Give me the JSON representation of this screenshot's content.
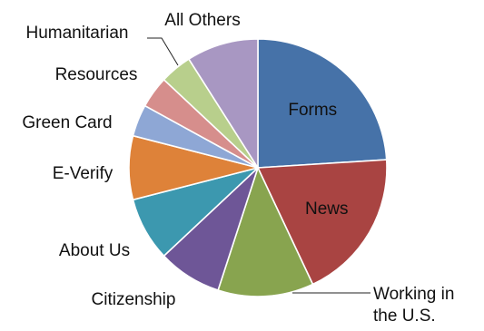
{
  "chart_data": {
    "type": "pie",
    "title": "",
    "slices": [
      {
        "label": "Forms",
        "value": 24,
        "color": "#4672A8"
      },
      {
        "label": "News",
        "value": 19,
        "color": "#A94442"
      },
      {
        "label": "Working in the U.S.",
        "value": 12,
        "color": "#88A44F"
      },
      {
        "label": "Citizenship",
        "value": 8,
        "color": "#6E5697"
      },
      {
        "label": "About Us",
        "value": 8,
        "color": "#3C98AF"
      },
      {
        "label": "E-Verify",
        "value": 8,
        "color": "#DE8239"
      },
      {
        "label": "Green Card",
        "value": 4,
        "color": "#8EA7D5"
      },
      {
        "label": "Resources",
        "value": 4,
        "color": "#D68E8C"
      },
      {
        "label": "Humanitarian",
        "value": 4,
        "color": "#B8CF8C"
      },
      {
        "label": "All Others",
        "value": 9,
        "color": "#A897C2"
      }
    ],
    "legend": "none",
    "start_angle": "12 o'clock",
    "direction": "clockwise"
  }
}
